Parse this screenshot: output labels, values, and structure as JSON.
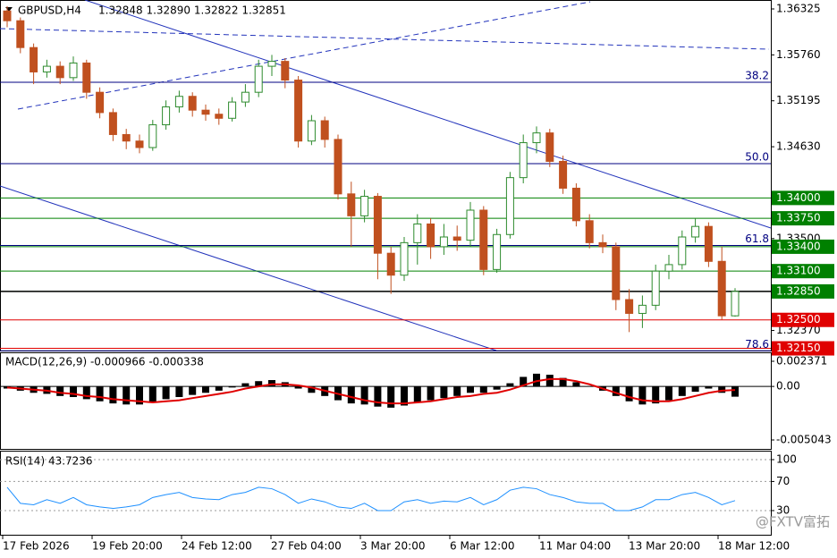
{
  "header": {
    "symbol": "GBPUSD,H4",
    "quote": "1.32848 1.32890 1.32822 1.32851"
  },
  "chart_data": [
    {
      "type": "candlestick",
      "up_color": "#2e8b2e",
      "down_color": "#c0501f",
      "ylim": [
        1.32123,
        1.36435
      ],
      "yticks": [
        1.36325,
        {
          "value": 1.3576,
          "label": "1.35760"
        },
        1.35195,
        {
          "value": 1.3463,
          "label": "1.34630"
        },
        {
          "value": 1.335,
          "label": "1.33500"
        },
        {
          "value": 1.3237,
          "label": "1.32370"
        }
      ],
      "open": [
        1.363,
        1.3618,
        1.3585,
        1.3555,
        1.3562,
        1.3548,
        1.3566,
        1.353,
        1.3505,
        1.3478,
        1.347,
        1.3462,
        1.349,
        1.3512,
        1.3525,
        1.3508,
        1.3503,
        1.3498,
        1.3518,
        1.353,
        1.3562,
        1.3568,
        1.3545,
        1.347,
        1.3495,
        1.3472,
        1.3405,
        1.3378,
        1.3402,
        1.3332,
        1.3305,
        1.3345,
        1.3368,
        1.334,
        1.3352,
        1.3348,
        1.3385,
        1.3312,
        1.3355,
        1.3425,
        1.3468,
        1.348,
        1.3445,
        1.3412,
        1.3372,
        1.3345,
        1.334,
        1.3275,
        1.3258,
        1.3268,
        1.331,
        1.3318,
        1.3352,
        1.3365,
        1.3322,
        1.3255
      ],
      "high": [
        1.3636,
        1.3622,
        1.359,
        1.357,
        1.3568,
        1.3574,
        1.357,
        1.3536,
        1.351,
        1.3485,
        1.3478,
        1.3496,
        1.352,
        1.3532,
        1.353,
        1.3515,
        1.351,
        1.3524,
        1.354,
        1.357,
        1.3576,
        1.3572,
        1.355,
        1.3502,
        1.35,
        1.3478,
        1.342,
        1.341,
        1.3406,
        1.334,
        1.3352,
        1.338,
        1.3375,
        1.3368,
        1.3366,
        1.3395,
        1.339,
        1.3362,
        1.3432,
        1.3478,
        1.3488,
        1.3485,
        1.3452,
        1.3418,
        1.338,
        1.3355,
        1.3345,
        1.3288,
        1.328,
        1.3318,
        1.333,
        1.336,
        1.3375,
        1.337,
        1.334,
        1.3289
      ],
      "low": [
        1.361,
        1.3578,
        1.354,
        1.3548,
        1.354,
        1.3544,
        1.3522,
        1.3498,
        1.347,
        1.346,
        1.3455,
        1.3458,
        1.3484,
        1.3505,
        1.35,
        1.3495,
        1.349,
        1.3494,
        1.3512,
        1.3524,
        1.355,
        1.3535,
        1.3462,
        1.3465,
        1.3462,
        1.3398,
        1.334,
        1.337,
        1.33,
        1.3282,
        1.3298,
        1.3318,
        1.3325,
        1.333,
        1.3335,
        1.334,
        1.3305,
        1.3308,
        1.335,
        1.3418,
        1.3455,
        1.3438,
        1.3405,
        1.3365,
        1.3338,
        1.3332,
        1.3262,
        1.3235,
        1.324,
        1.3262,
        1.33,
        1.3312,
        1.3345,
        1.3315,
        1.325,
        1.3254
      ],
      "close": [
        1.3618,
        1.3585,
        1.3555,
        1.3562,
        1.3548,
        1.3566,
        1.353,
        1.3505,
        1.3478,
        1.347,
        1.3462,
        1.349,
        1.3512,
        1.3525,
        1.3508,
        1.3503,
        1.3498,
        1.3518,
        1.353,
        1.3562,
        1.3568,
        1.3545,
        1.347,
        1.3495,
        1.3472,
        1.3405,
        1.3378,
        1.3402,
        1.3332,
        1.3305,
        1.3345,
        1.3368,
        1.334,
        1.3352,
        1.3348,
        1.3385,
        1.3312,
        1.3355,
        1.3425,
        1.3468,
        1.348,
        1.3445,
        1.3412,
        1.3372,
        1.3345,
        1.334,
        1.3275,
        1.3258,
        1.3268,
        1.331,
        1.3318,
        1.3352,
        1.3365,
        1.3322,
        1.3255,
        1.3285
      ],
      "levels": [
        {
          "value": 1.34,
          "label": "1.34000",
          "color": "#008000"
        },
        {
          "value": 1.3375,
          "label": "1.33750",
          "color": "#008000"
        },
        {
          "value": 1.334,
          "label": "1.33400",
          "color": "#008000"
        },
        {
          "value": 1.331,
          "label": "1.33100",
          "color": "#008000"
        },
        {
          "value": 1.3285,
          "label": "1.32850",
          "color": "#008000"
        },
        {
          "value": 1.325,
          "label": "1.32500",
          "color": "#e00000"
        },
        {
          "value": 1.3215,
          "label": "1.32150",
          "color": "#e00000"
        }
      ],
      "fib_levels": [
        {
          "value": 1.35423,
          "label": "38.2"
        },
        {
          "value": 1.34422,
          "label": "50.0"
        },
        {
          "value": 1.33415,
          "label": "61.8"
        },
        {
          "value": 1.3212,
          "label": "78.6"
        }
      ],
      "last_price": 1.32851
    },
    {
      "type": "macd",
      "title": "MACD(12,26,9) -0.000966 -0.000338",
      "ylim": [
        0.003214,
        -0.005886
      ],
      "yticks": [
        0.002371,
        {
          "value": 0,
          "label": "0.00"
        },
        -0.005043
      ],
      "signal_color": "#e00000",
      "values": [
        -0.0002,
        -0.0004,
        -0.0006,
        -0.0007,
        -0.0009,
        -0.001,
        -0.0012,
        -0.0014,
        -0.0016,
        -0.0017,
        -0.0017,
        -0.0015,
        -0.0012,
        -0.001,
        -0.0008,
        -0.0006,
        -0.0004,
        -0.0001,
        0.0003,
        0.0005,
        0.0006,
        0.0004,
        -0.0002,
        -0.0006,
        -0.0009,
        -0.0013,
        -0.0016,
        -0.0017,
        -0.0019,
        -0.002,
        -0.0018,
        -0.0015,
        -0.0013,
        -0.0011,
        -0.0009,
        -0.0006,
        -0.0006,
        -0.0003,
        0.0003,
        0.0009,
        0.0012,
        0.0011,
        0.0008,
        0.0004,
        0.0,
        -0.0004,
        -0.0009,
        -0.0014,
        -0.0017,
        -0.0016,
        -0.0013,
        -0.0009,
        -0.0005,
        -0.0002,
        -0.0006,
        -0.000966
      ],
      "signal": [
        -0.0001,
        -0.0002,
        -0.0003,
        -0.0004,
        -0.0006,
        -0.0007,
        -0.0009,
        -0.001,
        -0.0012,
        -0.0013,
        -0.0014,
        -0.0015,
        -0.0014,
        -0.0013,
        -0.0011,
        -0.0009,
        -0.0007,
        -0.0005,
        -0.0002,
        0.0,
        0.0002,
        0.0002,
        0.0001,
        -0.0001,
        -0.0004,
        -0.0007,
        -0.001,
        -0.0013,
        -0.0015,
        -0.0016,
        -0.0016,
        -0.0015,
        -0.0014,
        -0.0012,
        -0.001,
        -0.0009,
        -0.0007,
        -0.0006,
        -0.0003,
        0.0001,
        0.0005,
        0.0007,
        0.0007,
        0.0005,
        0.0002,
        -0.0002,
        -0.0006,
        -0.001,
        -0.0013,
        -0.0014,
        -0.0014,
        -0.0012,
        -0.0009,
        -0.0006,
        -0.0004,
        -0.000338
      ]
    },
    {
      "type": "line",
      "title": "RSI(14) 43.7236",
      "ylim": [
        112.3,
        -3.2
      ],
      "yticks": [
        100,
        70,
        30
      ],
      "color": "#1e90ff",
      "values": [
        62,
        40,
        38,
        45,
        40,
        48,
        38,
        35,
        33,
        35,
        38,
        48,
        52,
        55,
        48,
        46,
        45,
        52,
        55,
        62,
        60,
        52,
        40,
        46,
        42,
        35,
        33,
        40,
        30,
        30,
        42,
        45,
        40,
        43,
        42,
        48,
        38,
        45,
        58,
        62,
        60,
        52,
        48,
        42,
        40,
        40,
        30,
        30,
        35,
        45,
        45,
        52,
        55,
        48,
        38,
        43.7236
      ]
    }
  ],
  "x_labels": [
    "17 Feb 2026",
    "19 Feb 20:00",
    "24 Feb 12:00",
    "27 Feb 04:00",
    "3 Mar 20:00",
    "6 Mar 12:00",
    "11 Mar 04:00",
    "13 Mar 20:00",
    "18 Mar 12:00"
  ],
  "watermark": "@FXTV富拓"
}
